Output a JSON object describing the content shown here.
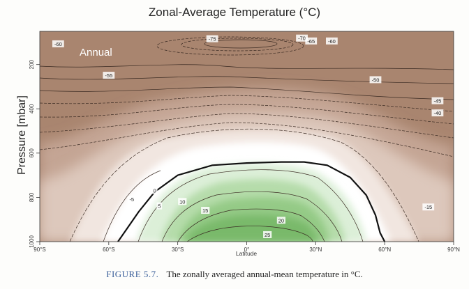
{
  "chart_data": {
    "type": "contour",
    "title": "Zonal-Average Temperature (°C)",
    "subtitle": "Annual",
    "xlabel": "Latitude",
    "ylabel": "Pressure [mbar]",
    "xlim": [
      -90,
      90
    ],
    "ylim": [
      1000,
      50
    ],
    "y_reversed": true,
    "x_ticks": [
      {
        "value": -90,
        "label": "90°S"
      },
      {
        "value": -60,
        "label": "60°S"
      },
      {
        "value": -30,
        "label": "30°S"
      },
      {
        "value": 0,
        "label": "0°"
      },
      {
        "value": 30,
        "label": "30°N"
      },
      {
        "value": 60,
        "label": "60°N"
      },
      {
        "value": 90,
        "label": "90°N"
      }
    ],
    "y_ticks": [
      {
        "value": 200,
        "label": "200"
      },
      {
        "value": 400,
        "label": "400"
      },
      {
        "value": 600,
        "label": "600"
      },
      {
        "value": 800,
        "label": "800"
      },
      {
        "value": 1000,
        "label": "1000"
      }
    ],
    "colors": {
      "cold": "#a9856f",
      "neutral": "#ffffff",
      "warm": "#72b164"
    },
    "zero_contour": [
      [
        -56,
        1000
      ],
      [
        -53,
        955
      ],
      [
        -47,
        865
      ],
      [
        -40,
        775
      ],
      [
        -30,
        700
      ],
      [
        -15,
        655
      ],
      [
        0,
        645
      ],
      [
        15,
        640
      ],
      [
        25,
        640
      ],
      [
        35,
        655
      ],
      [
        45,
        710
      ],
      [
        52,
        790
      ],
      [
        56,
        880
      ],
      [
        58,
        960
      ],
      [
        60,
        1000
      ]
    ],
    "contour_labels": [
      {
        "label": "-60",
        "lat": -82,
        "p": 108
      },
      {
        "label": "-55",
        "lat": -60,
        "p": 250
      },
      {
        "label": "-75",
        "lat": -15,
        "p": 85
      },
      {
        "label": "-70",
        "lat": 24,
        "p": 82
      },
      {
        "label": "-65",
        "lat": 28,
        "p": 95
      },
      {
        "label": "-60",
        "lat": 37,
        "p": 95
      },
      {
        "label": "-50",
        "lat": 56,
        "p": 270
      },
      {
        "label": "-45",
        "lat": 83,
        "p": 365
      },
      {
        "label": "-40",
        "lat": 83,
        "p": 420
      },
      {
        "label": "-15",
        "lat": 79,
        "p": 845
      },
      {
        "label": "-5",
        "lat": -50,
        "p": 810
      },
      {
        "label": "0",
        "lat": -40,
        "p": 770
      },
      {
        "label": "5",
        "lat": -38,
        "p": 840
      },
      {
        "label": "10",
        "lat": -28,
        "p": 820
      },
      {
        "label": "15",
        "lat": -18,
        "p": 860
      },
      {
        "label": "20",
        "lat": 15,
        "p": 905
      },
      {
        "label": "25",
        "lat": 9,
        "p": 970
      }
    ]
  },
  "caption": {
    "figure_number": "FIGURE 5.7.",
    "text": "The zonally averaged annual-mean temperature in °C."
  }
}
